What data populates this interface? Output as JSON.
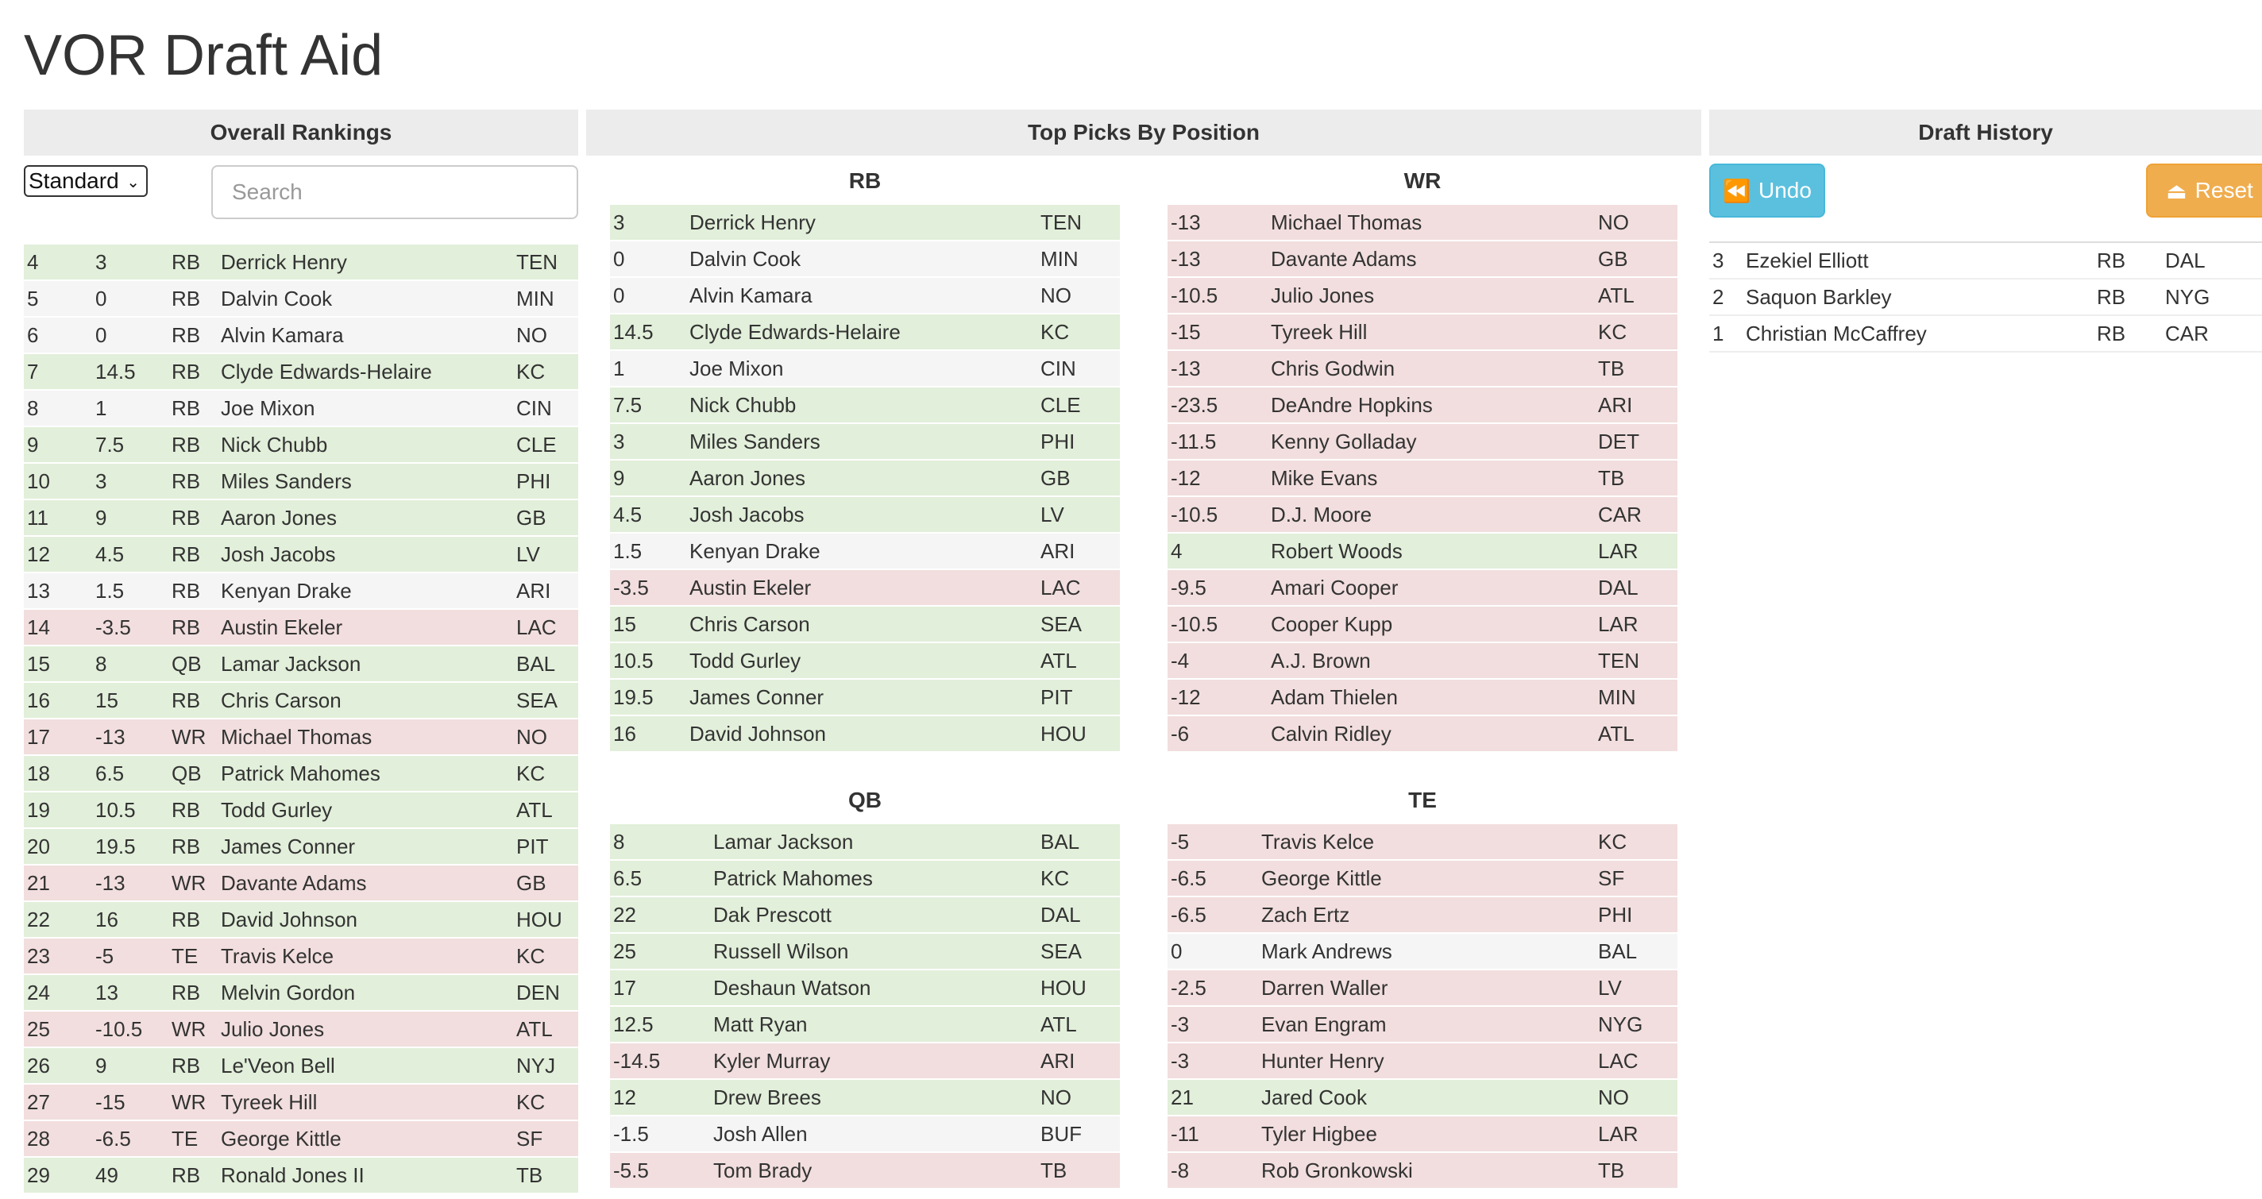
{
  "app": {
    "title": "VOR Draft Aid"
  },
  "colors": {
    "positive": "#e2efda",
    "negative": "#f2dede",
    "neutral": "#f5f5f5",
    "undo": "#5bc0de",
    "reset": "#f0ad4e",
    "header": "#ececec"
  },
  "overall": {
    "header": "Overall Rankings",
    "format_selected": "Standard",
    "search_placeholder": "Search",
    "rows": [
      {
        "rank": "4",
        "vor": "3",
        "pos": "RB",
        "name": "Derrick Henry",
        "team": "TEN",
        "tone": "pos"
      },
      {
        "rank": "5",
        "vor": "0",
        "pos": "RB",
        "name": "Dalvin Cook",
        "team": "MIN",
        "tone": "neu"
      },
      {
        "rank": "6",
        "vor": "0",
        "pos": "RB",
        "name": "Alvin Kamara",
        "team": "NO",
        "tone": "neu"
      },
      {
        "rank": "7",
        "vor": "14.5",
        "pos": "RB",
        "name": "Clyde Edwards-Helaire",
        "team": "KC",
        "tone": "pos"
      },
      {
        "rank": "8",
        "vor": "1",
        "pos": "RB",
        "name": "Joe Mixon",
        "team": "CIN",
        "tone": "neu"
      },
      {
        "rank": "9",
        "vor": "7.5",
        "pos": "RB",
        "name": "Nick Chubb",
        "team": "CLE",
        "tone": "pos"
      },
      {
        "rank": "10",
        "vor": "3",
        "pos": "RB",
        "name": "Miles Sanders",
        "team": "PHI",
        "tone": "pos"
      },
      {
        "rank": "11",
        "vor": "9",
        "pos": "RB",
        "name": "Aaron Jones",
        "team": "GB",
        "tone": "pos"
      },
      {
        "rank": "12",
        "vor": "4.5",
        "pos": "RB",
        "name": "Josh Jacobs",
        "team": "LV",
        "tone": "pos"
      },
      {
        "rank": "13",
        "vor": "1.5",
        "pos": "RB",
        "name": "Kenyan Drake",
        "team": "ARI",
        "tone": "neu"
      },
      {
        "rank": "14",
        "vor": "-3.5",
        "pos": "RB",
        "name": "Austin Ekeler",
        "team": "LAC",
        "tone": "neg"
      },
      {
        "rank": "15",
        "vor": "8",
        "pos": "QB",
        "name": "Lamar Jackson",
        "team": "BAL",
        "tone": "pos"
      },
      {
        "rank": "16",
        "vor": "15",
        "pos": "RB",
        "name": "Chris Carson",
        "team": "SEA",
        "tone": "pos"
      },
      {
        "rank": "17",
        "vor": "-13",
        "pos": "WR",
        "name": "Michael Thomas",
        "team": "NO",
        "tone": "neg"
      },
      {
        "rank": "18",
        "vor": "6.5",
        "pos": "QB",
        "name": "Patrick Mahomes",
        "team": "KC",
        "tone": "pos"
      },
      {
        "rank": "19",
        "vor": "10.5",
        "pos": "RB",
        "name": "Todd Gurley",
        "team": "ATL",
        "tone": "pos"
      },
      {
        "rank": "20",
        "vor": "19.5",
        "pos": "RB",
        "name": "James Conner",
        "team": "PIT",
        "tone": "pos"
      },
      {
        "rank": "21",
        "vor": "-13",
        "pos": "WR",
        "name": "Davante Adams",
        "team": "GB",
        "tone": "neg"
      },
      {
        "rank": "22",
        "vor": "16",
        "pos": "RB",
        "name": "David Johnson",
        "team": "HOU",
        "tone": "pos"
      },
      {
        "rank": "23",
        "vor": "-5",
        "pos": "TE",
        "name": "Travis Kelce",
        "team": "KC",
        "tone": "neg"
      },
      {
        "rank": "24",
        "vor": "13",
        "pos": "RB",
        "name": "Melvin Gordon",
        "team": "DEN",
        "tone": "pos"
      },
      {
        "rank": "25",
        "vor": "-10.5",
        "pos": "WR",
        "name": "Julio Jones",
        "team": "ATL",
        "tone": "neg"
      },
      {
        "rank": "26",
        "vor": "9",
        "pos": "RB",
        "name": "Le'Veon Bell",
        "team": "NYJ",
        "tone": "pos"
      },
      {
        "rank": "27",
        "vor": "-15",
        "pos": "WR",
        "name": "Tyreek Hill",
        "team": "KC",
        "tone": "neg"
      },
      {
        "rank": "28",
        "vor": "-6.5",
        "pos": "TE",
        "name": "George Kittle",
        "team": "SF",
        "tone": "neg"
      },
      {
        "rank": "29",
        "vor": "49",
        "pos": "RB",
        "name": "Ronald Jones II",
        "team": "TB",
        "tone": "pos"
      }
    ]
  },
  "by_position": {
    "header": "Top Picks By Position",
    "rb": {
      "title": "RB",
      "rows": [
        {
          "vor": "3",
          "name": "Derrick Henry",
          "team": "TEN",
          "tone": "pos"
        },
        {
          "vor": "0",
          "name": "Dalvin Cook",
          "team": "MIN",
          "tone": "neu"
        },
        {
          "vor": "0",
          "name": "Alvin Kamara",
          "team": "NO",
          "tone": "neu"
        },
        {
          "vor": "14.5",
          "name": "Clyde Edwards-Helaire",
          "team": "KC",
          "tone": "pos"
        },
        {
          "vor": "1",
          "name": "Joe Mixon",
          "team": "CIN",
          "tone": "neu"
        },
        {
          "vor": "7.5",
          "name": "Nick Chubb",
          "team": "CLE",
          "tone": "pos"
        },
        {
          "vor": "3",
          "name": "Miles Sanders",
          "team": "PHI",
          "tone": "pos"
        },
        {
          "vor": "9",
          "name": "Aaron Jones",
          "team": "GB",
          "tone": "pos"
        },
        {
          "vor": "4.5",
          "name": "Josh Jacobs",
          "team": "LV",
          "tone": "pos"
        },
        {
          "vor": "1.5",
          "name": "Kenyan Drake",
          "team": "ARI",
          "tone": "neu"
        },
        {
          "vor": "-3.5",
          "name": "Austin Ekeler",
          "team": "LAC",
          "tone": "neg"
        },
        {
          "vor": "15",
          "name": "Chris Carson",
          "team": "SEA",
          "tone": "pos"
        },
        {
          "vor": "10.5",
          "name": "Todd Gurley",
          "team": "ATL",
          "tone": "pos"
        },
        {
          "vor": "19.5",
          "name": "James Conner",
          "team": "PIT",
          "tone": "pos"
        },
        {
          "vor": "16",
          "name": "David Johnson",
          "team": "HOU",
          "tone": "pos"
        }
      ]
    },
    "wr": {
      "title": "WR",
      "rows": [
        {
          "vor": "-13",
          "name": "Michael Thomas",
          "team": "NO",
          "tone": "neg"
        },
        {
          "vor": "-13",
          "name": "Davante Adams",
          "team": "GB",
          "tone": "neg"
        },
        {
          "vor": "-10.5",
          "name": "Julio Jones",
          "team": "ATL",
          "tone": "neg"
        },
        {
          "vor": "-15",
          "name": "Tyreek Hill",
          "team": "KC",
          "tone": "neg"
        },
        {
          "vor": "-13",
          "name": "Chris Godwin",
          "team": "TB",
          "tone": "neg"
        },
        {
          "vor": "-23.5",
          "name": "DeAndre Hopkins",
          "team": "ARI",
          "tone": "neg"
        },
        {
          "vor": "-11.5",
          "name": "Kenny Golladay",
          "team": "DET",
          "tone": "neg"
        },
        {
          "vor": "-12",
          "name": "Mike Evans",
          "team": "TB",
          "tone": "neg"
        },
        {
          "vor": "-10.5",
          "name": "D.J. Moore",
          "team": "CAR",
          "tone": "neg"
        },
        {
          "vor": "4",
          "name": "Robert Woods",
          "team": "LAR",
          "tone": "pos"
        },
        {
          "vor": "-9.5",
          "name": "Amari Cooper",
          "team": "DAL",
          "tone": "neg"
        },
        {
          "vor": "-10.5",
          "name": "Cooper Kupp",
          "team": "LAR",
          "tone": "neg"
        },
        {
          "vor": "-4",
          "name": "A.J. Brown",
          "team": "TEN",
          "tone": "neg"
        },
        {
          "vor": "-12",
          "name": "Adam Thielen",
          "team": "MIN",
          "tone": "neg"
        },
        {
          "vor": "-6",
          "name": "Calvin Ridley",
          "team": "ATL",
          "tone": "neg"
        }
      ]
    },
    "qb": {
      "title": "QB",
      "rows": [
        {
          "vor": "8",
          "name": "Lamar Jackson",
          "team": "BAL",
          "tone": "pos"
        },
        {
          "vor": "6.5",
          "name": "Patrick Mahomes",
          "team": "KC",
          "tone": "pos"
        },
        {
          "vor": "22",
          "name": "Dak Prescott",
          "team": "DAL",
          "tone": "pos"
        },
        {
          "vor": "25",
          "name": "Russell Wilson",
          "team": "SEA",
          "tone": "pos"
        },
        {
          "vor": "17",
          "name": "Deshaun Watson",
          "team": "HOU",
          "tone": "pos"
        },
        {
          "vor": "12.5",
          "name": "Matt Ryan",
          "team": "ATL",
          "tone": "pos"
        },
        {
          "vor": "-14.5",
          "name": "Kyler Murray",
          "team": "ARI",
          "tone": "neg"
        },
        {
          "vor": "12",
          "name": "Drew Brees",
          "team": "NO",
          "tone": "pos"
        },
        {
          "vor": "-1.5",
          "name": "Josh Allen",
          "team": "BUF",
          "tone": "neu"
        },
        {
          "vor": "-5.5",
          "name": "Tom Brady",
          "team": "TB",
          "tone": "neg"
        }
      ]
    },
    "te": {
      "title": "TE",
      "rows": [
        {
          "vor": "-5",
          "name": "Travis Kelce",
          "team": "KC",
          "tone": "neg"
        },
        {
          "vor": "-6.5",
          "name": "George Kittle",
          "team": "SF",
          "tone": "neg"
        },
        {
          "vor": "-6.5",
          "name": "Zach Ertz",
          "team": "PHI",
          "tone": "neg"
        },
        {
          "vor": "0",
          "name": "Mark Andrews",
          "team": "BAL",
          "tone": "neu"
        },
        {
          "vor": "-2.5",
          "name": "Darren Waller",
          "team": "LV",
          "tone": "neg"
        },
        {
          "vor": "-3",
          "name": "Evan Engram",
          "team": "NYG",
          "tone": "neg"
        },
        {
          "vor": "-3",
          "name": "Hunter Henry",
          "team": "LAC",
          "tone": "neg"
        },
        {
          "vor": "21",
          "name": "Jared Cook",
          "team": "NO",
          "tone": "pos"
        },
        {
          "vor": "-11",
          "name": "Tyler Higbee",
          "team": "LAR",
          "tone": "neg"
        },
        {
          "vor": "-8",
          "name": "Rob Gronkowski",
          "team": "TB",
          "tone": "neg"
        }
      ]
    }
  },
  "history": {
    "header": "Draft History",
    "undo_label": "Undo",
    "undo_icon": "fast-backward-icon",
    "reset_label": "Reset",
    "reset_icon": "eject-icon",
    "rows": [
      {
        "pick": "3",
        "name": "Ezekiel Elliott",
        "pos": "RB",
        "team": "DAL"
      },
      {
        "pick": "2",
        "name": "Saquon Barkley",
        "pos": "RB",
        "team": "NYG"
      },
      {
        "pick": "1",
        "name": "Christian McCaffrey",
        "pos": "RB",
        "team": "CAR"
      }
    ]
  }
}
